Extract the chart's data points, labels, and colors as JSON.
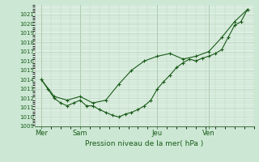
{
  "title": "Pression niveau de la mer( hPa )",
  "bg_color": "#cce8d4",
  "plot_bg": "#dff0e4",
  "line_color": "#1a5c1a",
  "grid_color": "#b8d4bc",
  "ylim": [
    1009,
    1022
  ],
  "yticks": [
    1009,
    1010,
    1011,
    1012,
    1013,
    1014,
    1015,
    1016,
    1017,
    1018,
    1019,
    1020,
    1021
  ],
  "day_labels": [
    "Mer",
    "Sam",
    "Jeu",
    "Ven"
  ],
  "day_positions": [
    0,
    6,
    18,
    26
  ],
  "xlim": [
    -1,
    33
  ],
  "series1_x": [
    0,
    1,
    2,
    3,
    4,
    5,
    6,
    7,
    8,
    9,
    10,
    11,
    12,
    13,
    14,
    15,
    16,
    17,
    18,
    19,
    20,
    21,
    22,
    23,
    24,
    25,
    26,
    27,
    28,
    29,
    30,
    31,
    32
  ],
  "series1_y": [
    1014.0,
    1013.0,
    1012.0,
    1011.5,
    1011.2,
    1011.5,
    1011.8,
    1011.2,
    1011.2,
    1010.8,
    1010.5,
    1010.2,
    1010.0,
    1010.3,
    1010.5,
    1010.8,
    1011.2,
    1011.8,
    1013.0,
    1013.8,
    1014.5,
    1015.3,
    1015.8,
    1016.2,
    1016.0,
    1016.3,
    1016.5,
    1016.8,
    1017.2,
    1018.5,
    1019.8,
    1020.2,
    1021.5
  ],
  "series2_x": [
    0,
    2,
    4,
    6,
    8,
    10,
    12,
    14,
    16,
    18,
    20,
    22,
    24,
    26,
    28,
    30,
    32
  ],
  "series2_y": [
    1014.0,
    1012.2,
    1011.8,
    1012.2,
    1011.5,
    1011.8,
    1013.5,
    1015.0,
    1016.0,
    1016.5,
    1016.8,
    1016.2,
    1016.5,
    1017.0,
    1018.5,
    1020.2,
    1021.5
  ]
}
